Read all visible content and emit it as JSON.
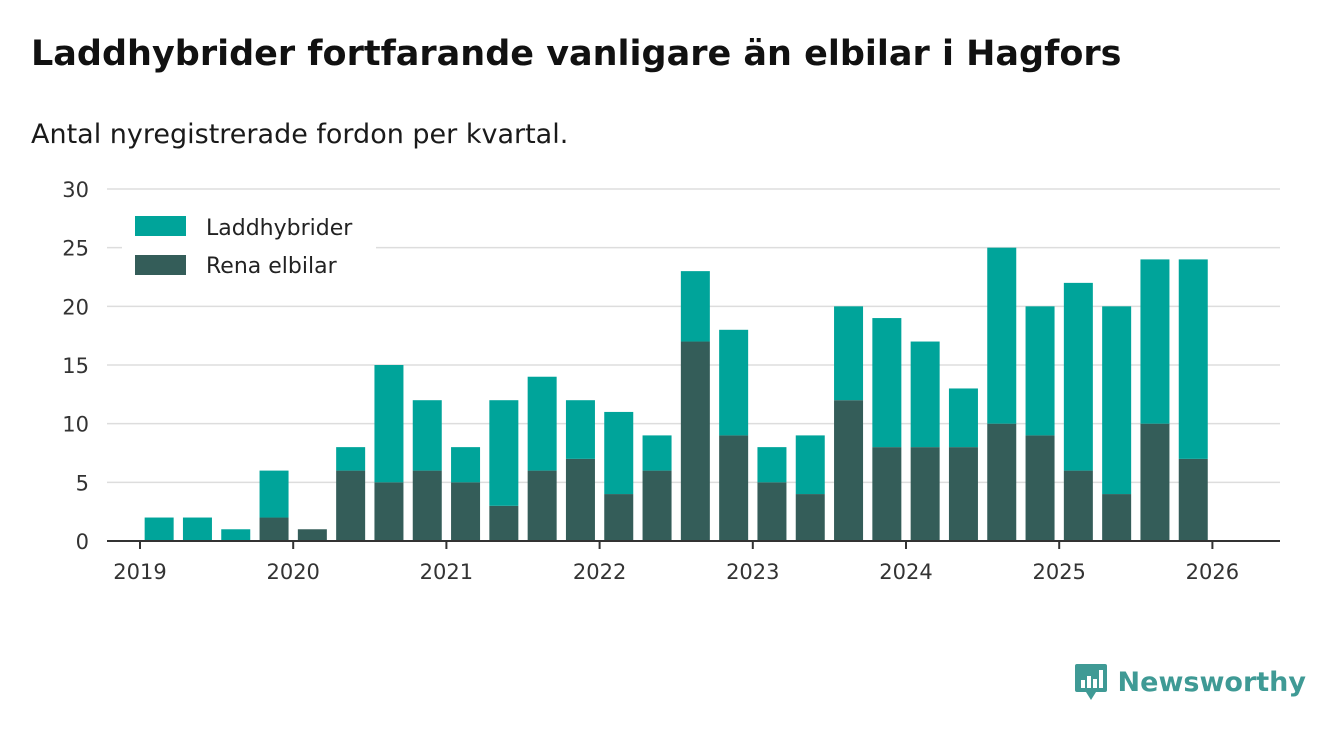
{
  "header": {
    "title": "Laddhybrider fortfarande vanligare än elbilar i Hagfors",
    "subtitle": "Antal nyregistrerade fordon per kvartal."
  },
  "brand": {
    "name": "Newsworthy",
    "color": "#3f9a95"
  },
  "chart_data": {
    "type": "bar",
    "stacked": true,
    "title": "Laddhybrider fortfarande vanligare än elbilar i Hagfors",
    "subtitle": "Antal nyregistrerade fordon per kvartal.",
    "xlabel": "",
    "ylabel": "",
    "ylim": [
      0,
      30
    ],
    "yticks": [
      0,
      5,
      10,
      15,
      20,
      25,
      30
    ],
    "xticks": [
      "2019",
      "2020",
      "2021",
      "2022",
      "2023",
      "2024",
      "2025",
      "2026"
    ],
    "grid": true,
    "legend_position": "top-left",
    "categories": [
      "2019 Q1",
      "2019 Q2",
      "2019 Q3",
      "2019 Q4",
      "2020 Q1",
      "2020 Q2",
      "2020 Q3",
      "2020 Q4",
      "2021 Q1",
      "2021 Q2",
      "2021 Q3",
      "2021 Q4",
      "2022 Q1",
      "2022 Q2",
      "2022 Q3",
      "2022 Q4",
      "2023 Q1",
      "2023 Q2",
      "2023 Q3",
      "2023 Q4",
      "2024 Q1",
      "2024 Q2",
      "2024 Q3",
      "2024 Q4",
      "2025 Q1",
      "2025 Q2",
      "2025 Q3",
      "2025 Q4",
      "2026 Q1"
    ],
    "series": [
      {
        "name": "Rena elbilar",
        "color": "#345d59",
        "values": [
          0,
          0,
          0,
          2,
          1,
          6,
          5,
          6,
          5,
          3,
          6,
          7,
          4,
          6,
          17,
          9,
          5,
          4,
          12,
          8,
          8,
          8,
          10,
          9,
          6,
          4,
          10,
          7,
          0
        ]
      },
      {
        "name": "Laddhybrider",
        "color": "#00a49a",
        "values": [
          2,
          2,
          1,
          4,
          0,
          2,
          10,
          6,
          3,
          9,
          8,
          5,
          7,
          3,
          6,
          9,
          3,
          5,
          8,
          11,
          9,
          5,
          15,
          11,
          16,
          16,
          14,
          17,
          0
        ]
      }
    ],
    "legend": [
      "Laddhybrider",
      "Rena elbilar"
    ]
  }
}
